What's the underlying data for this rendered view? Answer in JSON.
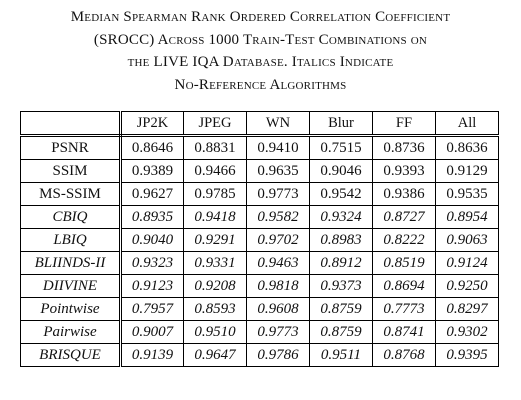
{
  "caption": {
    "lines": [
      "Median Spearman Rank Ordered Correlation Coefficient",
      "(SROCC) Across 1000 Train-Test Combinations on",
      "the LIVE IQA Database. Italics Indicate",
      "No-Reference Algorithms"
    ]
  },
  "table": {
    "columns": [
      "JP2K",
      "JPEG",
      "WN",
      "Blur",
      "FF",
      "All"
    ],
    "rows": [
      {
        "name": "PSNR",
        "values": [
          "0.8646",
          "0.8831",
          "0.9410",
          "0.7515",
          "0.8736",
          "0.8636"
        ]
      },
      {
        "name": "SSIM",
        "values": [
          "0.9389",
          "0.9466",
          "0.9635",
          "0.9046",
          "0.9393",
          "0.9129"
        ]
      },
      {
        "name": "MS-SSIM",
        "values": [
          "0.9627",
          "0.9785",
          "0.9773",
          "0.9542",
          "0.9386",
          "0.9535"
        ]
      },
      {
        "name": "CBIQ",
        "values": [
          "0.8935",
          "0.9418",
          "0.9582",
          "0.9324",
          "0.8727",
          "0.8954"
        ]
      },
      {
        "name": "LBIQ",
        "values": [
          "0.9040",
          "0.9291",
          "0.9702",
          "0.8983",
          "0.8222",
          "0.9063"
        ]
      },
      {
        "name": "BLIINDS-II",
        "values": [
          "0.9323",
          "0.9331",
          "0.9463",
          "0.8912",
          "0.8519",
          "0.9124"
        ]
      },
      {
        "name": "DIIVINE",
        "values": [
          "0.9123",
          "0.9208",
          "0.9818",
          "0.9373",
          "0.8694",
          "0.9250"
        ]
      },
      {
        "name": "Pointwise",
        "values": [
          "0.7957",
          "0.8593",
          "0.9608",
          "0.8759",
          "0.7773",
          "0.8297"
        ]
      },
      {
        "name": "Pairwise",
        "values": [
          "0.9007",
          "0.9510",
          "0.9773",
          "0.8759",
          "0.8741",
          "0.9302"
        ]
      },
      {
        "name": "BRISQUE",
        "values": [
          "0.9139",
          "0.9647",
          "0.9786",
          "0.9511",
          "0.8768",
          "0.9395"
        ]
      }
    ]
  }
}
